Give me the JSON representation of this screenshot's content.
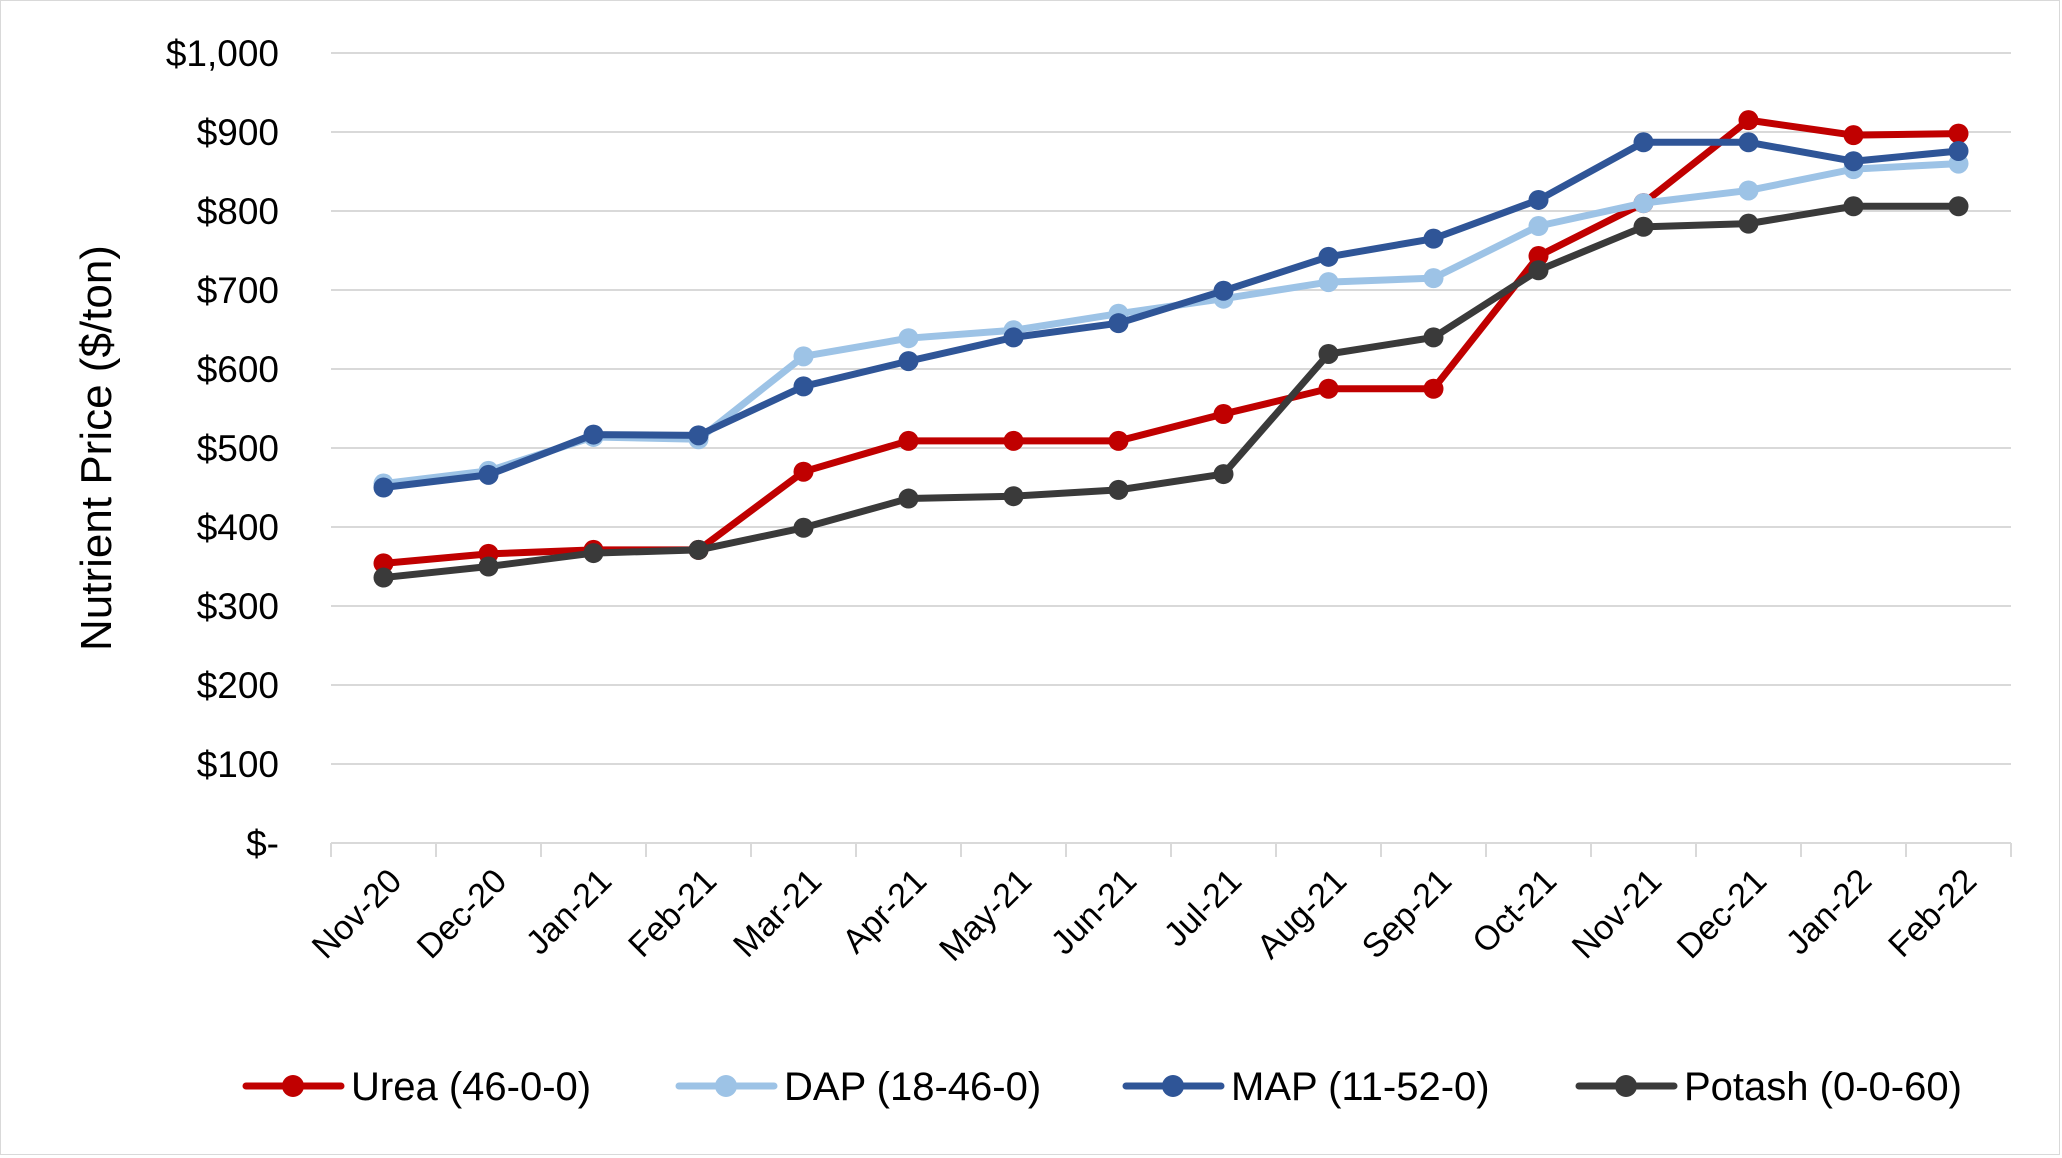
{
  "chart_data": {
    "type": "line",
    "title": "",
    "xlabel": "",
    "ylabel": "Nutrient Price ($/ton)",
    "categories": [
      "Nov-20",
      "Dec-20",
      "Jan-21",
      "Feb-21",
      "Mar-21",
      "Apr-21",
      "May-21",
      "Jun-21",
      "Jul-21",
      "Aug-21",
      "Sep-21",
      "Oct-21",
      "Nov-21",
      "Dec-21",
      "Jan-22",
      "Feb-22"
    ],
    "ylim": [
      0,
      1000
    ],
    "ytick_values": [
      0,
      100,
      200,
      300,
      400,
      500,
      600,
      700,
      800,
      900,
      1000
    ],
    "ytick_labels": [
      "$-",
      "$100",
      "$200",
      "$300",
      "$400",
      "$500",
      "$600",
      "$700",
      "$800",
      "$900",
      "$1,000"
    ],
    "grid": "horizontal",
    "legend_position": "bottom",
    "series": [
      {
        "name": "Urea (46-0-0)",
        "color": "#c00000",
        "values": [
          354,
          366,
          371,
          371,
          470,
          509,
          509,
          509,
          543,
          575,
          575,
          743,
          810,
          915,
          896,
          898
        ]
      },
      {
        "name": "DAP (18-46-0)",
        "color": "#9dc3e6",
        "values": [
          455,
          471,
          514,
          511,
          616,
          639,
          649,
          670,
          689,
          710,
          715,
          781,
          810,
          826,
          853,
          860
        ]
      },
      {
        "name": "MAP (11-52-0)",
        "color": "#2f5597",
        "values": [
          450,
          466,
          517,
          516,
          578,
          610,
          640,
          658,
          699,
          742,
          765,
          814,
          887,
          887,
          863,
          876
        ]
      },
      {
        "name": "Potash (0-0-60)",
        "color": "#3a3a3a",
        "values": [
          336,
          350,
          367,
          371,
          399,
          436,
          439,
          447,
          467,
          619,
          640,
          725,
          780,
          784,
          806,
          806
        ]
      }
    ]
  }
}
